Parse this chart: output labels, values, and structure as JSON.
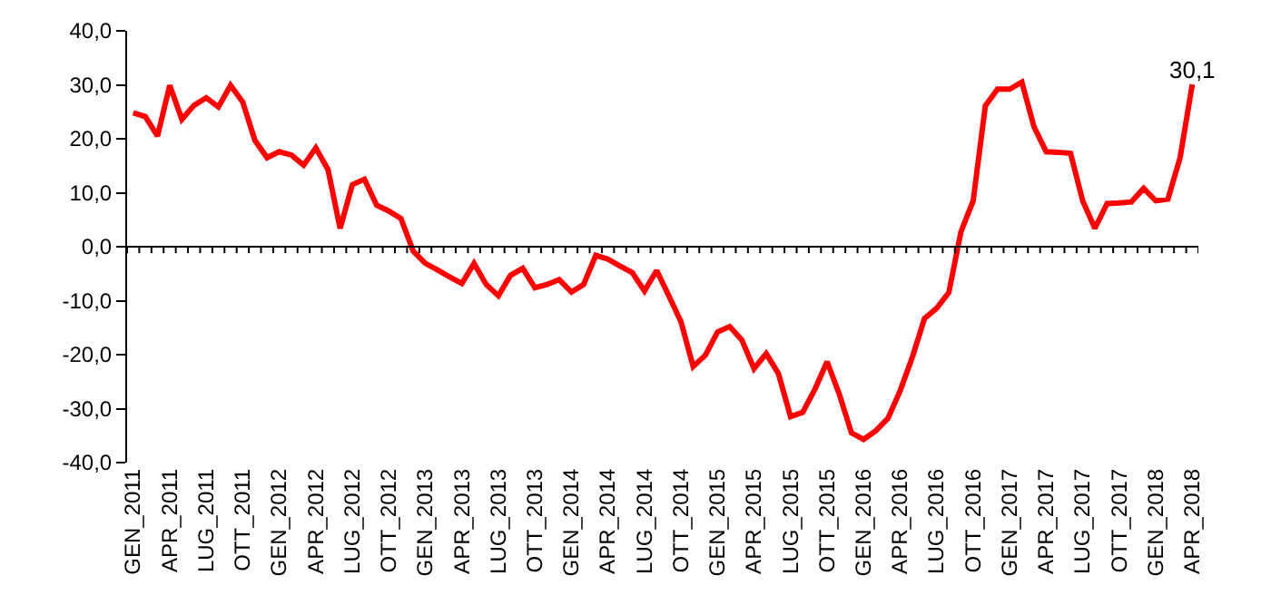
{
  "chart_data": {
    "type": "line",
    "categories": [
      "GEN_2011",
      null,
      null,
      "APR_2011",
      null,
      null,
      "LUG_2011",
      null,
      null,
      "OTT_2011",
      null,
      null,
      "GEN_2012",
      null,
      null,
      "APR_2012",
      null,
      null,
      "LUG_2012",
      null,
      null,
      "OTT_2012",
      null,
      null,
      "GEN_2013",
      null,
      null,
      "APR_2013",
      null,
      null,
      "LUG_2013",
      null,
      null,
      "OTT_2013",
      null,
      null,
      "GEN_2014",
      null,
      null,
      "APR_2014",
      null,
      null,
      "LUG_2014",
      null,
      null,
      "OTT_2014",
      null,
      null,
      "GEN_2015",
      null,
      null,
      "APR_2015",
      null,
      null,
      "LUG_2015",
      null,
      null,
      "OTT_2015",
      null,
      null,
      "GEN_2016",
      null,
      null,
      "APR_2016",
      null,
      null,
      "LUG_2016",
      null,
      null,
      "OTT_2016",
      null,
      null,
      "GEN_2017",
      null,
      null,
      "APR_2017",
      null,
      null,
      "LUG_2017",
      null,
      null,
      "OTT_2017",
      null,
      null,
      "GEN_2018",
      null,
      null,
      "APR_2018"
    ],
    "series": [
      {
        "color": "#ff0000",
        "values": [
          24.8,
          24.1,
          20.5,
          29.9,
          23.6,
          26.2,
          27.6,
          25.9,
          29.9,
          26.8,
          19.7,
          16.5,
          17.6,
          17.0,
          15.1,
          18.3,
          14.3,
          3.4,
          11.5,
          12.5,
          7.7,
          6.6,
          5.2,
          -0.8,
          -3.1,
          -4.3,
          -5.6,
          -6.8,
          -3.1,
          -7.0,
          -9.1,
          -5.3,
          -4.0,
          -7.6,
          -7.0,
          -6.1,
          -8.4,
          -7.0,
          -1.6,
          -2.3,
          -3.6,
          -4.8,
          -8.2,
          -4.4,
          -9.1,
          -13.9,
          -22.2,
          -20.1,
          -15.8,
          -14.8,
          -17.3,
          -22.6,
          -19.8,
          -23.5,
          -31.5,
          -30.7,
          -26.4,
          -21.3,
          -27.3,
          -34.5,
          -35.7,
          -34.1,
          -31.8,
          -26.7,
          -20.5,
          -13.3,
          -11.4,
          -8.5,
          2.8,
          8.5,
          26.1,
          29.2,
          29.2,
          30.5,
          22.2,
          17.6,
          17.5,
          17.3,
          8.5,
          3.4,
          8.0,
          8.1,
          8.3,
          10.8,
          8.5,
          8.8,
          16.5,
          30.1
        ],
        "value_labels": [
          null,
          null,
          null,
          null,
          null,
          null,
          null,
          null,
          null,
          null,
          null,
          null,
          null,
          null,
          null,
          null,
          null,
          null,
          null,
          null,
          null,
          null,
          null,
          null,
          null,
          null,
          null,
          null,
          null,
          null,
          null,
          null,
          null,
          null,
          null,
          null,
          null,
          null,
          null,
          null,
          null,
          null,
          null,
          null,
          null,
          null,
          null,
          null,
          null,
          null,
          null,
          null,
          null,
          null,
          null,
          null,
          null,
          null,
          null,
          null,
          null,
          null,
          null,
          null,
          null,
          null,
          null,
          null,
          null,
          null,
          null,
          null,
          null,
          null,
          null,
          null,
          null,
          null,
          null,
          null,
          null,
          null,
          null,
          null,
          null,
          null,
          null,
          "30,1"
        ]
      }
    ],
    "ylim": [
      -40,
      40
    ],
    "yticks": [
      {
        "value": -40,
        "label": "-40,0"
      },
      {
        "value": -30,
        "label": "-30,0"
      },
      {
        "value": -20,
        "label": "-20,0"
      },
      {
        "value": -10,
        "label": "-10,0"
      },
      {
        "value": 0,
        "label": "0,0"
      },
      {
        "value": 10,
        "label": "10,0"
      },
      {
        "value": 20,
        "label": "20,0"
      },
      {
        "value": 30,
        "label": "30,0"
      },
      {
        "value": 40,
        "label": "40,0"
      }
    ],
    "ref_lines": [
      {
        "axis": "y",
        "value": 0,
        "color": "#000000",
        "line_style": "solid"
      }
    ],
    "grid": false,
    "legend": false,
    "marker": "none",
    "line_style": "solid"
  }
}
